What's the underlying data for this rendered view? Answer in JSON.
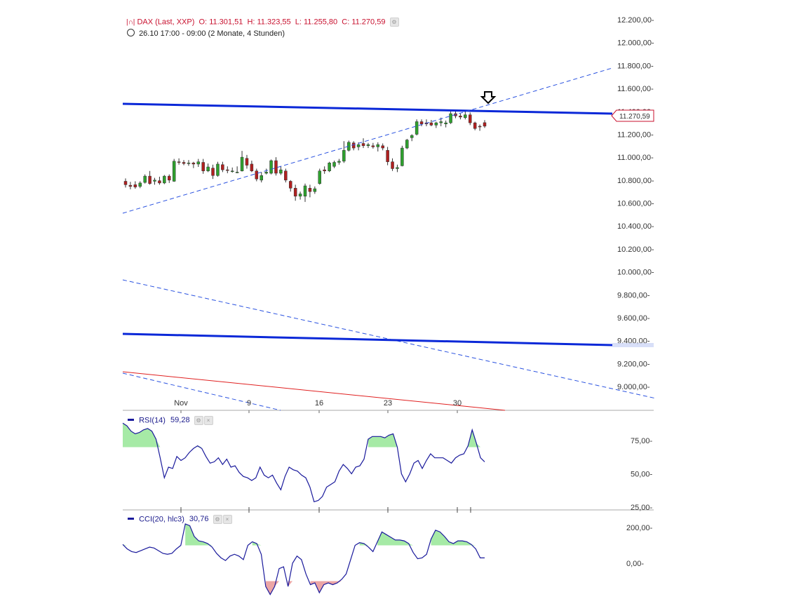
{
  "header": {
    "instrument": "DAX (Last, XXP)",
    "open_label": "O:",
    "open": "11.301,51",
    "high_label": "H:",
    "high": "11.323,55",
    "low_label": "L:",
    "low": "11.255,80",
    "close_label": "C:",
    "close": "11.270,59",
    "period": "26.10 17:00 - 09:00 (2 Monate, 4 Stunden)"
  },
  "colors": {
    "up_candle": "#2ea02e",
    "down_candle": "#b02020",
    "trendline_solid": "#0a28d8",
    "trendline_dashed": "#2a52e0",
    "red_line": "#e02020",
    "indicator_line": "#1a1a9c",
    "overbought_fill": "#a6eaa6",
    "oversold_fill": "#eca6a6",
    "axis": "#aaaaaa"
  },
  "chart_data": [
    {
      "id": "price",
      "type": "candlestick",
      "y_axis_ticks": [
        "12.200,00",
        "12.000,00",
        "11.800,00",
        "11.600,00",
        "11.400,00",
        "11.200,00",
        "11.000,00",
        "10.800,00",
        "10.600,00",
        "10.400,00",
        "10.200,00",
        "10.000,00",
        "9.800,00",
        "9.600,00",
        "9.400,00",
        "9.200,00",
        "9.000,00"
      ],
      "x_axis_ticks": [
        "Nov",
        "9",
        "16",
        "23",
        "30"
      ],
      "last_price_label": "11.270,59",
      "candles": [
        {
          "o": 10790,
          "h": 10815,
          "l": 10735,
          "c": 10760
        },
        {
          "o": 10755,
          "h": 10785,
          "l": 10720,
          "c": 10745
        },
        {
          "o": 10760,
          "h": 10790,
          "l": 10725,
          "c": 10740
        },
        {
          "o": 10745,
          "h": 10790,
          "l": 10730,
          "c": 10775
        },
        {
          "o": 10780,
          "h": 10850,
          "l": 10770,
          "c": 10835
        },
        {
          "o": 10835,
          "h": 10880,
          "l": 10760,
          "c": 10770
        },
        {
          "o": 10790,
          "h": 10820,
          "l": 10760,
          "c": 10800
        },
        {
          "o": 10795,
          "h": 10830,
          "l": 10760,
          "c": 10775
        },
        {
          "o": 10775,
          "h": 10845,
          "l": 10765,
          "c": 10835
        },
        {
          "o": 10835,
          "h": 10850,
          "l": 10775,
          "c": 10800
        },
        {
          "o": 10790,
          "h": 10985,
          "l": 10785,
          "c": 10965
        },
        {
          "o": 10960,
          "h": 10990,
          "l": 10935,
          "c": 10955
        },
        {
          "o": 10955,
          "h": 10975,
          "l": 10930,
          "c": 10945
        },
        {
          "o": 10945,
          "h": 10975,
          "l": 10925,
          "c": 10950
        },
        {
          "o": 10950,
          "h": 10960,
          "l": 10905,
          "c": 10940
        },
        {
          "o": 10940,
          "h": 10985,
          "l": 10915,
          "c": 10960
        },
        {
          "o": 10955,
          "h": 10985,
          "l": 10855,
          "c": 10880
        },
        {
          "o": 10880,
          "h": 10945,
          "l": 10870,
          "c": 10915
        },
        {
          "o": 10905,
          "h": 10935,
          "l": 10810,
          "c": 10840
        },
        {
          "o": 10840,
          "h": 10960,
          "l": 10830,
          "c": 10940
        },
        {
          "o": 10935,
          "h": 10960,
          "l": 10870,
          "c": 10890
        },
        {
          "o": 10890,
          "h": 10920,
          "l": 10860,
          "c": 10885
        },
        {
          "o": 10880,
          "h": 10910,
          "l": 10865,
          "c": 10880
        },
        {
          "o": 10870,
          "h": 10920,
          "l": 10860,
          "c": 10870
        },
        {
          "o": 10880,
          "h": 11055,
          "l": 10875,
          "c": 11000
        },
        {
          "o": 10990,
          "h": 11020,
          "l": 10900,
          "c": 10930
        },
        {
          "o": 10940,
          "h": 10970,
          "l": 10870,
          "c": 10880
        },
        {
          "o": 10880,
          "h": 10900,
          "l": 10790,
          "c": 10810
        },
        {
          "o": 10800,
          "h": 10870,
          "l": 10780,
          "c": 10840
        },
        {
          "o": 10860,
          "h": 10900,
          "l": 10850,
          "c": 10870
        },
        {
          "o": 10860,
          "h": 10980,
          "l": 10850,
          "c": 10970
        },
        {
          "o": 10970,
          "h": 11000,
          "l": 10840,
          "c": 10860
        },
        {
          "o": 10860,
          "h": 10920,
          "l": 10845,
          "c": 10890
        },
        {
          "o": 10880,
          "h": 10900,
          "l": 10780,
          "c": 10800
        },
        {
          "o": 10790,
          "h": 10800,
          "l": 10700,
          "c": 10730
        },
        {
          "o": 10730,
          "h": 10760,
          "l": 10620,
          "c": 10660
        },
        {
          "o": 10660,
          "h": 10700,
          "l": 10630,
          "c": 10680
        },
        {
          "o": 10660,
          "h": 10770,
          "l": 10610,
          "c": 10750
        },
        {
          "o": 10730,
          "h": 10760,
          "l": 10650,
          "c": 10700
        },
        {
          "o": 10700,
          "h": 10745,
          "l": 10680,
          "c": 10725
        },
        {
          "o": 10770,
          "h": 10900,
          "l": 10760,
          "c": 10880
        },
        {
          "o": 10890,
          "h": 10920,
          "l": 10855,
          "c": 10880
        },
        {
          "o": 10880,
          "h": 10960,
          "l": 10870,
          "c": 10950
        },
        {
          "o": 10920,
          "h": 10970,
          "l": 10905,
          "c": 10955
        },
        {
          "o": 10955,
          "h": 10985,
          "l": 10935,
          "c": 10965
        },
        {
          "o": 10965,
          "h": 11140,
          "l": 10950,
          "c": 11060
        },
        {
          "o": 11060,
          "h": 11145,
          "l": 11050,
          "c": 11130
        },
        {
          "o": 11125,
          "h": 11140,
          "l": 11060,
          "c": 11080
        },
        {
          "o": 11090,
          "h": 11130,
          "l": 11060,
          "c": 11110
        },
        {
          "o": 11120,
          "h": 11165,
          "l": 11080,
          "c": 11100
        },
        {
          "o": 11100,
          "h": 11125,
          "l": 11080,
          "c": 11110
        },
        {
          "o": 11100,
          "h": 11125,
          "l": 11075,
          "c": 11090
        },
        {
          "o": 11090,
          "h": 11130,
          "l": 11050,
          "c": 11110
        },
        {
          "o": 11100,
          "h": 11120,
          "l": 11060,
          "c": 11080
        },
        {
          "o": 11060,
          "h": 11090,
          "l": 10930,
          "c": 10960
        },
        {
          "o": 10960,
          "h": 10990,
          "l": 10880,
          "c": 10900
        },
        {
          "o": 10900,
          "h": 10935,
          "l": 10870,
          "c": 10910
        },
        {
          "o": 10925,
          "h": 11100,
          "l": 10920,
          "c": 11080
        },
        {
          "o": 11080,
          "h": 11160,
          "l": 11070,
          "c": 11150
        },
        {
          "o": 11170,
          "h": 11200,
          "l": 11140,
          "c": 11190
        },
        {
          "o": 11200,
          "h": 11330,
          "l": 11190,
          "c": 11310
        },
        {
          "o": 11310,
          "h": 11330,
          "l": 11270,
          "c": 11290
        },
        {
          "o": 11300,
          "h": 11330,
          "l": 11270,
          "c": 11290
        },
        {
          "o": 11300,
          "h": 11325,
          "l": 11270,
          "c": 11280
        },
        {
          "o": 11280,
          "h": 11310,
          "l": 11255,
          "c": 11300
        },
        {
          "o": 11300,
          "h": 11345,
          "l": 11270,
          "c": 11310
        },
        {
          "o": 11290,
          "h": 11320,
          "l": 11260,
          "c": 11300
        },
        {
          "o": 11300,
          "h": 11400,
          "l": 11290,
          "c": 11380
        },
        {
          "o": 11380,
          "h": 11400,
          "l": 11340,
          "c": 11360
        },
        {
          "o": 11360,
          "h": 11380,
          "l": 11330,
          "c": 11350
        },
        {
          "o": 11345,
          "h": 11405,
          "l": 11330,
          "c": 11370
        },
        {
          "o": 11370,
          "h": 11390,
          "l": 11280,
          "c": 11300
        },
        {
          "o": 11300,
          "h": 11310,
          "l": 11235,
          "c": 11250
        },
        {
          "o": 11270,
          "h": 11285,
          "l": 11230,
          "c": 11265
        },
        {
          "o": 11301.51,
          "h": 11323.55,
          "l": 11255.8,
          "c": 11270.59
        }
      ]
    },
    {
      "id": "rsi",
      "type": "line",
      "name": "RSI(14)",
      "current_value": "59,28",
      "y_axis_ticks": [
        "75,00",
        "50,00",
        "25,00"
      ],
      "upper_band": 70,
      "y": [
        88,
        86,
        82,
        80,
        81,
        83,
        84,
        82,
        76,
        62,
        47,
        55,
        54,
        63,
        60,
        62,
        66,
        69,
        71,
        69,
        63,
        58,
        59,
        62,
        57,
        61,
        55,
        56,
        51,
        48,
        47,
        45,
        47,
        55,
        49,
        47,
        49,
        43,
        38,
        48,
        55,
        53,
        52,
        49,
        47,
        40,
        29,
        30,
        33,
        40,
        42,
        44,
        52,
        57,
        54,
        50,
        55,
        56,
        61,
        76,
        78,
        78,
        78,
        77,
        79,
        80,
        70,
        50,
        44,
        50,
        58,
        60,
        54,
        60,
        65,
        62,
        62,
        62,
        60,
        58,
        62,
        64,
        65,
        71,
        83,
        73,
        62,
        59
      ]
    },
    {
      "id": "cci",
      "type": "line",
      "name": "CCI(20, hlc3)",
      "current_value": "30,76",
      "y_axis_ticks": [
        "200,00",
        "0,00"
      ],
      "upper_band": 100,
      "lower_band": -100,
      "y": [
        105,
        80,
        65,
        60,
        70,
        80,
        90,
        85,
        70,
        55,
        50,
        55,
        80,
        100,
        220,
        210,
        150,
        125,
        120,
        110,
        90,
        55,
        30,
        15,
        40,
        50,
        40,
        20,
        100,
        120,
        110,
        50,
        -130,
        -175,
        -130,
        -30,
        -20,
        -130,
        0,
        40,
        20,
        -60,
        -120,
        -110,
        -165,
        -120,
        -110,
        -120,
        -110,
        -90,
        -60,
        20,
        100,
        115,
        110,
        90,
        65,
        120,
        175,
        160,
        145,
        130,
        130,
        125,
        110,
        60,
        25,
        30,
        50,
        135,
        185,
        175,
        150,
        120,
        110,
        125,
        125,
        120,
        105,
        80,
        30,
        30
      ]
    }
  ]
}
